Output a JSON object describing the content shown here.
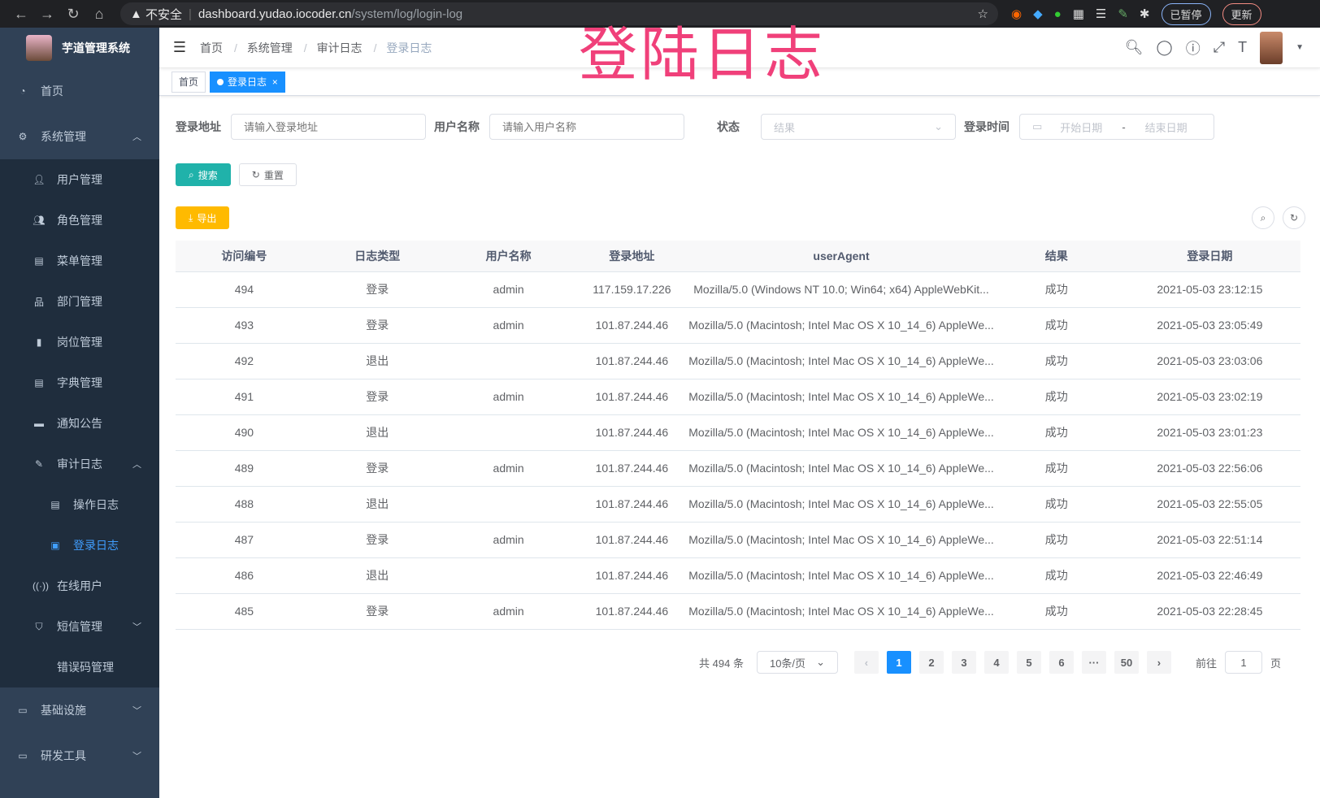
{
  "browser": {
    "insecure": "不安全",
    "url_host": "dashboard.yudao.iocoder.cn",
    "url_path": "/system/log/login-log",
    "paused": "已暂停",
    "update": "更新"
  },
  "overlay_title": "登陆日志",
  "sidebar": {
    "title": "芋道管理系统",
    "items": [
      {
        "label": "首页",
        "icon": "dashboard-icon"
      },
      {
        "label": "系统管理",
        "icon": "gear-icon",
        "expanded": true
      },
      {
        "label": "用户管理",
        "icon": "user-icon"
      },
      {
        "label": "角色管理",
        "icon": "peoples-icon"
      },
      {
        "label": "菜单管理",
        "icon": "tree-table-icon"
      },
      {
        "label": "部门管理",
        "icon": "tree-icon"
      },
      {
        "label": "岗位管理",
        "icon": "post-icon"
      },
      {
        "label": "字典管理",
        "icon": "dict-icon"
      },
      {
        "label": "通知公告",
        "icon": "message-icon"
      },
      {
        "label": "审计日志",
        "icon": "log-icon",
        "expanded": true
      },
      {
        "label": "操作日志",
        "icon": "form-icon"
      },
      {
        "label": "登录日志",
        "icon": "logininfor-icon",
        "active": true
      },
      {
        "label": "在线用户",
        "icon": "online-icon"
      },
      {
        "label": "短信管理",
        "icon": "shield-icon"
      },
      {
        "label": "错误码管理",
        "icon": "code-icon"
      },
      {
        "label": "基础设施",
        "icon": "monitor-icon"
      },
      {
        "label": "研发工具",
        "icon": "tool-icon"
      }
    ]
  },
  "breadcrumb": [
    "首页",
    "系统管理",
    "审计日志",
    "登录日志"
  ],
  "tags": [
    "首页",
    "登录日志"
  ],
  "form": {
    "addr_label": "登录地址",
    "addr_ph": "请输入登录地址",
    "user_label": "用户名称",
    "user_ph": "请输入用户名称",
    "status_label": "状态",
    "status_ph": "结果",
    "time_label": "登录时间",
    "start_ph": "开始日期",
    "dash": "-",
    "end_ph": "结束日期",
    "search": "搜索",
    "reset": "重置",
    "export": "导出"
  },
  "table": {
    "headers": [
      "访问编号",
      "日志类型",
      "用户名称",
      "登录地址",
      "userAgent",
      "结果",
      "登录日期"
    ],
    "rows": [
      [
        "494",
        "登录",
        "admin",
        "117.159.17.226",
        "Mozilla/5.0 (Windows NT 10.0; Win64; x64) AppleWebKit...",
        "成功",
        "2021-05-03 23:12:15"
      ],
      [
        "493",
        "登录",
        "admin",
        "101.87.244.46",
        "Mozilla/5.0 (Macintosh; Intel Mac OS X 10_14_6) AppleWe...",
        "成功",
        "2021-05-03 23:05:49"
      ],
      [
        "492",
        "退出",
        "",
        "101.87.244.46",
        "Mozilla/5.0 (Macintosh; Intel Mac OS X 10_14_6) AppleWe...",
        "成功",
        "2021-05-03 23:03:06"
      ],
      [
        "491",
        "登录",
        "admin",
        "101.87.244.46",
        "Mozilla/5.0 (Macintosh; Intel Mac OS X 10_14_6) AppleWe...",
        "成功",
        "2021-05-03 23:02:19"
      ],
      [
        "490",
        "退出",
        "",
        "101.87.244.46",
        "Mozilla/5.0 (Macintosh; Intel Mac OS X 10_14_6) AppleWe...",
        "成功",
        "2021-05-03 23:01:23"
      ],
      [
        "489",
        "登录",
        "admin",
        "101.87.244.46",
        "Mozilla/5.0 (Macintosh; Intel Mac OS X 10_14_6) AppleWe...",
        "成功",
        "2021-05-03 22:56:06"
      ],
      [
        "488",
        "退出",
        "",
        "101.87.244.46",
        "Mozilla/5.0 (Macintosh; Intel Mac OS X 10_14_6) AppleWe...",
        "成功",
        "2021-05-03 22:55:05"
      ],
      [
        "487",
        "登录",
        "admin",
        "101.87.244.46",
        "Mozilla/5.0 (Macintosh; Intel Mac OS X 10_14_6) AppleWe...",
        "成功",
        "2021-05-03 22:51:14"
      ],
      [
        "486",
        "退出",
        "",
        "101.87.244.46",
        "Mozilla/5.0 (Macintosh; Intel Mac OS X 10_14_6) AppleWe...",
        "成功",
        "2021-05-03 22:46:49"
      ],
      [
        "485",
        "登录",
        "admin",
        "101.87.244.46",
        "Mozilla/5.0 (Macintosh; Intel Mac OS X 10_14_6) AppleWe...",
        "成功",
        "2021-05-03 22:28:45"
      ]
    ]
  },
  "pagination": {
    "total": "共 494 条",
    "page_size": "10条/页",
    "pages": [
      "1",
      "2",
      "3",
      "4",
      "5",
      "6",
      "···",
      "50"
    ],
    "current": "1",
    "goto": "前往",
    "goto_value": "1",
    "page_unit": "页"
  },
  "colors": {
    "sidebar": "#304156",
    "active": "#409eff",
    "primary": "#1890ff"
  }
}
